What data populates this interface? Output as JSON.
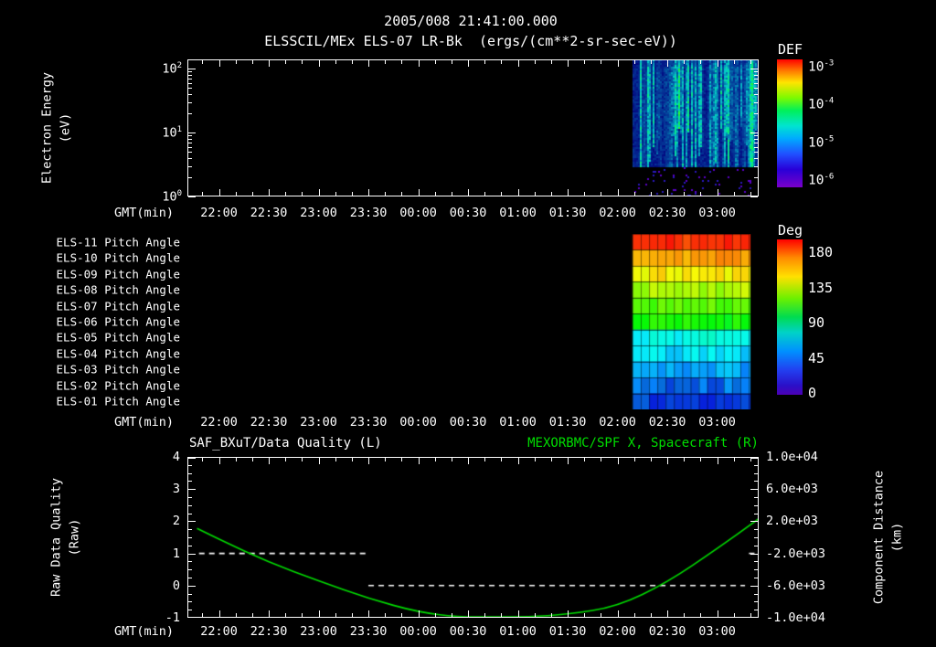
{
  "header": {
    "datetime": "2005/008 21:41:00.000",
    "title": "ELSSCIL/MEx ELS-07 LR-Bk  (ergs/(cm**2-sr-sec-eV))"
  },
  "time_axis": {
    "label": "GMT(min)",
    "start_hour": 21.683,
    "end_hour": 27.417,
    "major_tick_hours": [
      22.0,
      22.5,
      23.0,
      23.5,
      24.0,
      24.5,
      25.0,
      25.5,
      26.0,
      26.5,
      27.0
    ],
    "major_tick_labels": [
      "22:00",
      "22:30",
      "23:00",
      "23:30",
      "00:00",
      "00:30",
      "01:00",
      "01:30",
      "02:00",
      "02:30",
      "03:00"
    ],
    "minor_tick_minutes": 10
  },
  "panels": {
    "spectrogram": {
      "ylabel_line1": "Electron Energy",
      "ylabel_line2": "(eV)",
      "y_tick_exponents": [
        2,
        1,
        0
      ],
      "colorbar_title": "DEF",
      "colorbar_tick_exponents": [
        -3,
        -4,
        -5,
        -6
      ],
      "colorbar_colors": [
        "#ff0000",
        "#ff7a00",
        "#ffe400",
        "#7dfa00",
        "#00f05a",
        "#00e4d0",
        "#00aaff",
        "#2050ff",
        "#2800d8",
        "#7a00c8"
      ],
      "colorbar_positions": [
        0,
        0.09,
        0.18,
        0.3,
        0.4,
        0.52,
        0.62,
        0.74,
        0.86,
        1
      ],
      "noise_seed": 7
    },
    "pitch": {
      "colorbar_title": "Deg",
      "colorbar_tick_labels": [
        "180",
        "135",
        "90",
        "45",
        "0"
      ],
      "colorbar_colors": [
        "#ff0000",
        "#ff8c00",
        "#ffe000",
        "#6cf000",
        "#00dc50",
        "#00d2c8",
        "#0090ff",
        "#2240f0",
        "#2a10c8",
        "#4c00b4"
      ],
      "colorbar_positions": [
        0,
        0.12,
        0.24,
        0.38,
        0.5,
        0.6,
        0.72,
        0.84,
        0.94,
        1
      ],
      "noise_seed": 11
    },
    "timeseries": {
      "title_left": "SAF_BXuT/Data Quality (L)",
      "title_right": "MEXORBMC/SPF X, Spacecraft (R)",
      "title_right_color": "#00dd00",
      "ylabel_left_line1": "Raw Data Quality",
      "ylabel_left_line2": "(Raw)",
      "ylabel_right_line1": "Component Distance",
      "ylabel_right_line2": "(km)",
      "left_tick_labels": [
        "4",
        "3",
        "2",
        "1",
        "0",
        "-1"
      ],
      "right_tick_labels": [
        "1.0e+04",
        "6.0e+03",
        "2.0e+03",
        "-2.0e+03",
        "-6.0e+03",
        "-1.0e+04"
      ]
    }
  },
  "chart_data": [
    {
      "type": "heatmap",
      "name": "electron-energy-spectrogram",
      "title": "ELSSCIL/MEx ELS-07 LR-Bk",
      "units": "ergs/(cm**2-sr-sec-eV)",
      "xlabel": "GMT(min)",
      "ylabel": "Electron Energy (eV)",
      "y_scale": "log",
      "y_range_ev": [
        1,
        140
      ],
      "value_range": [
        1e-06,
        0.001
      ],
      "colorbar_label": "DEF",
      "colorbar_tick_values": [
        0.001,
        0.0001,
        1e-05,
        1e-06
      ],
      "x_range_hours": [
        21.683,
        27.417
      ],
      "data_coverage_hours": [
        26.15,
        27.417
      ],
      "pattern": "no data before ~02:09; afterwards blue background near 3e-6 with vertical cyan/green streaks up to ~1e-4 between ~3 and 100 eV; sparse violet dots below ~3 eV"
    },
    {
      "type": "heatmap",
      "name": "pitch-angle-panel",
      "rows": [
        "ELS-11 Pitch Angle",
        "ELS-10 Pitch Angle",
        "ELS-09 Pitch Angle",
        "ELS-08 Pitch Angle",
        "ELS-07 Pitch Angle",
        "ELS-06 Pitch Angle",
        "ELS-05 Pitch Angle",
        "ELS-04 Pitch Angle",
        "ELS-03 Pitch Angle",
        "ELS-02 Pitch Angle",
        "ELS-01 Pitch Angle"
      ],
      "row_values_deg": [
        172,
        152,
        137,
        121,
        106,
        92,
        48,
        40,
        30,
        20,
        12
      ],
      "value_range_deg": [
        0,
        180
      ],
      "colorbar_label": "Deg",
      "colorbar_ticks": [
        180,
        135,
        90,
        45,
        0
      ],
      "data_coverage_hours": [
        26.15,
        27.33
      ],
      "cell_minutes": 5
    },
    {
      "type": "line",
      "name": "quality-and-distance",
      "title_left": "SAF_BXuT/Data Quality (L)",
      "title_right": "MEXORBMC/SPF X, Spacecraft (R)",
      "xlabel": "GMT(min)",
      "left_axis": {
        "label": "Raw Data Quality (Raw)",
        "range": [
          -1,
          4
        ],
        "ticks": [
          4,
          3,
          2,
          1,
          0,
          -1
        ]
      },
      "right_axis": {
        "label": "Component Distance (km)",
        "range": [
          -10000,
          10000
        ],
        "ticks": [
          10000,
          6000,
          2000,
          -2000,
          -6000,
          -10000
        ]
      },
      "series": [
        {
          "name": "SAF_BXuT Data Quality",
          "axis": "left",
          "style": "dashed",
          "color": "#ffffff",
          "segments": [
            {
              "value": 1,
              "hours": [
                21.8,
                23.5
              ]
            },
            {
              "value": 0,
              "hours": [
                23.5,
                27.28
              ]
            },
            {
              "value": 1,
              "hours": [
                27.32,
                27.417
              ]
            }
          ]
        },
        {
          "name": "MEXORBMC SPF X Spacecraft",
          "axis": "right",
          "style": "solid",
          "color": "#00dd00",
          "points_hours_km": [
            [
              21.78,
              1100
            ],
            [
              22.0,
              -250
            ],
            [
              22.5,
              -3100
            ],
            [
              23.0,
              -5400
            ],
            [
              23.5,
              -7600
            ],
            [
              24.0,
              -9300
            ],
            [
              24.4,
              -10200
            ],
            [
              24.75,
              -10550
            ],
            [
              25.1,
              -10300
            ],
            [
              25.5,
              -9600
            ],
            [
              26.0,
              -8600
            ],
            [
              26.5,
              -5600
            ],
            [
              27.0,
              -1400
            ],
            [
              27.417,
              2300
            ]
          ]
        }
      ]
    }
  ]
}
